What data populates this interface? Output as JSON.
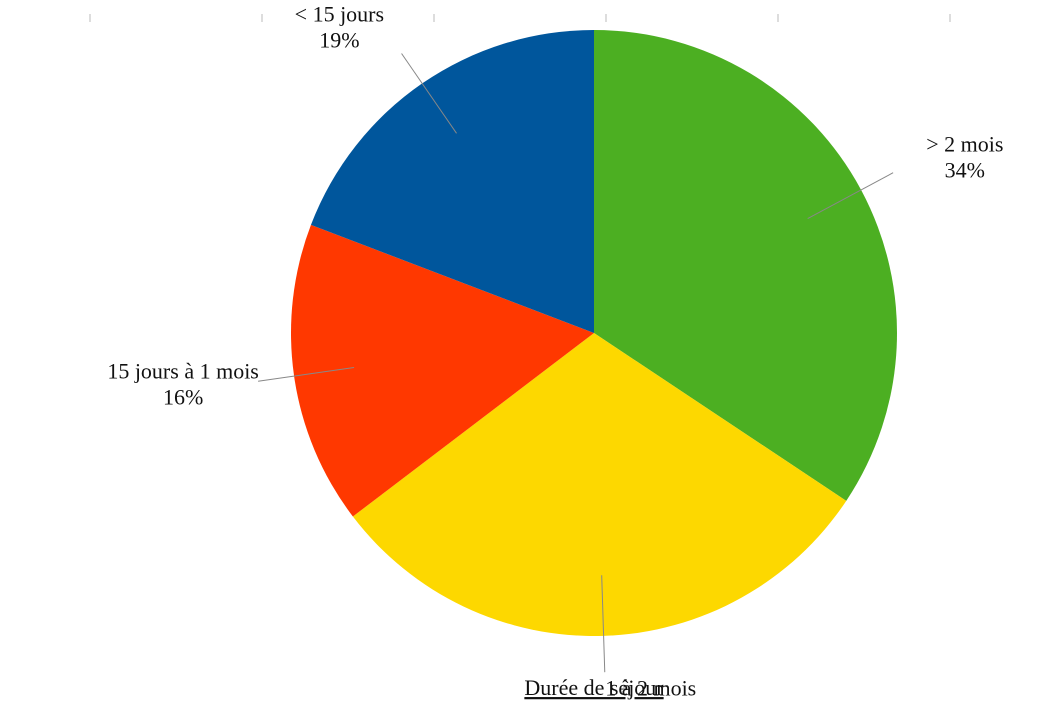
{
  "chart_data": {
    "type": "pie",
    "title": "Durée de séjour",
    "categories": [
      "> 2 mois",
      "1 à 2 mois",
      "15 jours à 1 mois",
      "< 15 jours"
    ],
    "values": [
      34,
      30,
      16,
      19
    ],
    "value_labels": [
      "34%",
      "30%",
      "16%",
      "19%"
    ],
    "colors": [
      "#4caf22",
      "#fdd800",
      "#ff3800",
      "#00569c"
    ]
  }
}
